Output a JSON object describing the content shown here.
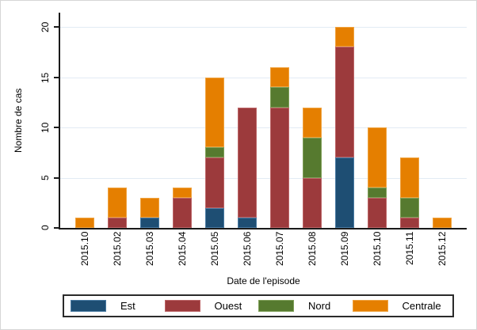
{
  "figure": {
    "background": "#ffffff",
    "border_color": "#d6d6d6"
  },
  "chart_data": {
    "type": "bar",
    "stacked": true,
    "title": "",
    "xlabel": "Date de l'episode",
    "ylabel": "Nombre de cas",
    "categories": [
      "2015.10",
      "2015.02",
      "2015.03",
      "2015.04",
      "2015.05",
      "2015.06",
      "2015.07",
      "2015.08",
      "2015.09",
      "2015.10",
      "2015.11",
      "2015.12"
    ],
    "series": [
      {
        "name": "Est",
        "color": "#1e4e73",
        "border_color": "#4a7ba3",
        "values": [
          0,
          0,
          1,
          0,
          2,
          1,
          0,
          0,
          7,
          0,
          0,
          0
        ]
      },
      {
        "name": "Ouest",
        "color": "#9c3a3c",
        "border_color": "#bc6567",
        "values": [
          0,
          1,
          0,
          3,
          5,
          11,
          12,
          5,
          11,
          3,
          1,
          0
        ]
      },
      {
        "name": "Nord",
        "color": "#567a2f",
        "border_color": "#7f9f58",
        "values": [
          0,
          0,
          0,
          0,
          1,
          0,
          2,
          4,
          0,
          1,
          2,
          0
        ]
      },
      {
        "name": "Centrale",
        "color": "#e57f00",
        "border_color": "#f0a33f",
        "values": [
          1,
          3,
          2,
          1,
          7,
          0,
          2,
          3,
          2,
          6,
          4,
          1
        ]
      }
    ],
    "totals": [
      1,
      4,
      3,
      4,
      15,
      12,
      16,
      12,
      20,
      10,
      7,
      1
    ],
    "y_ticks": [
      0,
      5,
      10,
      15,
      20
    ],
    "ylim": [
      0,
      20
    ],
    "grid": true,
    "gridline_color": "#e2ebf4",
    "axis_color": "#1a1a1a",
    "legend_position": "bottom",
    "legend_labels": [
      "Est",
      "Ouest",
      "Nord",
      "Centrale"
    ]
  }
}
